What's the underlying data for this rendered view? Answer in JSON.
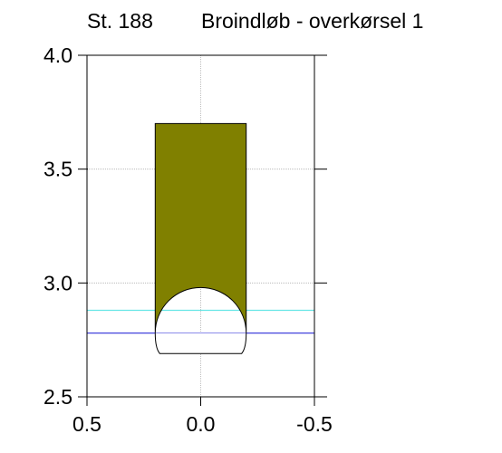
{
  "chart_data": {
    "type": "cross-section",
    "title_station": "St. 188",
    "title_name": "Broindløb - overkørsel 1",
    "xlim": [
      0.5,
      -0.5
    ],
    "ylim": [
      2.5,
      4.0
    ],
    "x_ticks": [
      0.5,
      0.0,
      -0.5
    ],
    "x_tick_labels": [
      "0.5",
      "0.0",
      "-0.5"
    ],
    "y_ticks": [
      2.5,
      3.0,
      3.5,
      4.0
    ],
    "y_tick_labels": [
      "2.5",
      "3.0",
      "3.5",
      "4.0"
    ],
    "grid": true,
    "embankment": {
      "x_left": 0.2,
      "x_right": -0.2,
      "y_top": 3.7,
      "color": "#808000"
    },
    "culvert": {
      "center_x": 0.0,
      "center_y": 2.78,
      "radius": 0.2,
      "bottom_y": 2.69,
      "bottom_half_width": 0.18
    },
    "water_levels": [
      {
        "y": 2.88,
        "color": "#66e6e6"
      },
      {
        "y": 2.78,
        "color": "#4444dd"
      }
    ]
  }
}
